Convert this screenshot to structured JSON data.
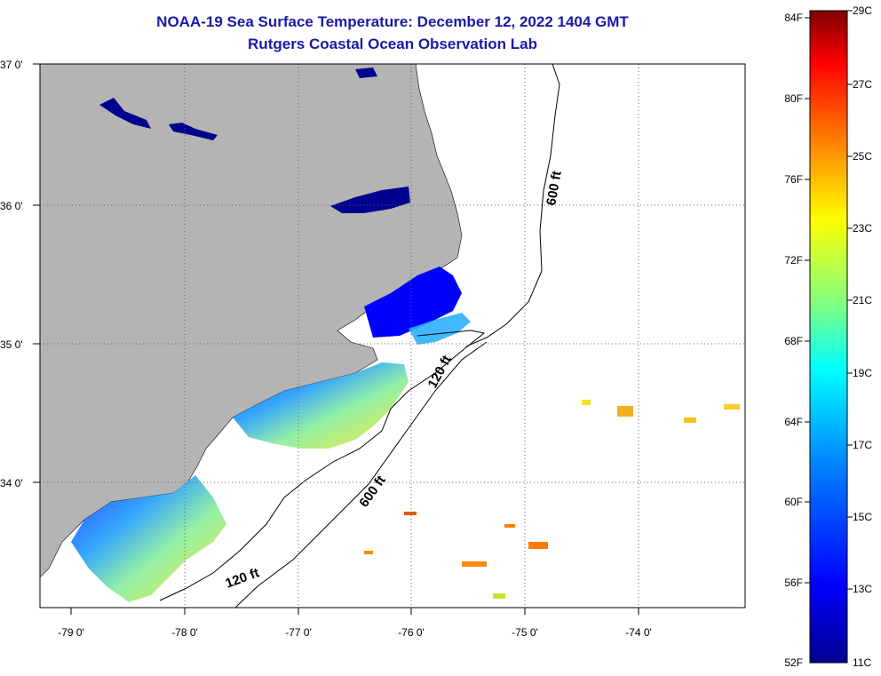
{
  "title": {
    "line1": "NOAA-19 Sea Surface Temperature:  December 12, 2022 1404 GMT",
    "line2": "Rutgers Coastal Ocean Observation Lab"
  },
  "map": {
    "lat_labels": [
      "37 0'",
      "36 0'",
      "35 0'",
      "34 0'"
    ],
    "lon_labels": [
      "-79 0'",
      "-78 0'",
      "-77 0'",
      "-76 0'",
      "-75 0'",
      "-74 0'"
    ],
    "contour_labels": [
      "600 ft",
      "120 ft",
      "600 ft",
      "120 ft"
    ],
    "colors": {
      "land": "#b4b4b4",
      "water": "#ffffff",
      "frame": "#000000"
    }
  },
  "colorbar": {
    "fahrenheit": [
      "84F",
      "80F",
      "76F",
      "72F",
      "68F",
      "64F",
      "60F",
      "56F",
      "52F"
    ],
    "celsius": [
      "29C",
      "27C",
      "25C",
      "23C",
      "21C",
      "19C",
      "17C",
      "15C",
      "13C",
      "11C"
    ],
    "colors": [
      "#7f0000",
      "#ff0000",
      "#ff8000",
      "#ffff00",
      "#80ff80",
      "#00ffff",
      "#0080ff",
      "#0000ff",
      "#00008f"
    ]
  }
}
